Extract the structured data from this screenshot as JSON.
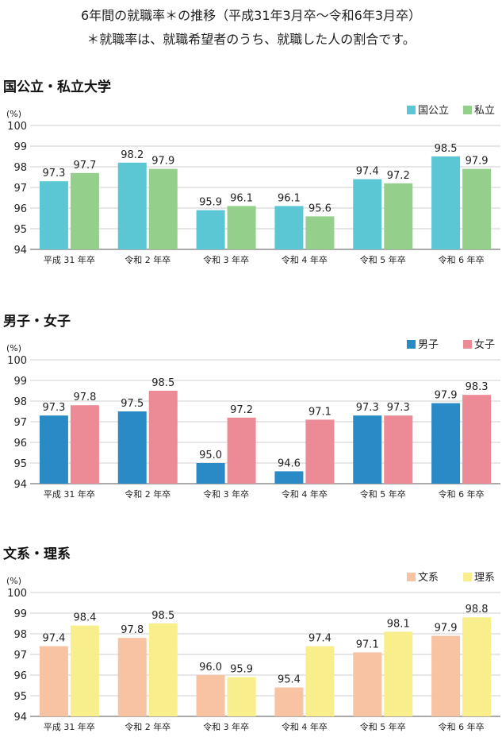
{
  "header": {
    "line1": "6年間の就職率＊の推移（平成31年3月卒～令和6年3月卒）",
    "line2": "＊就職率は、就職希望者のうち、就職した人の割合です。"
  },
  "chart_data": [
    {
      "type": "bar",
      "title": "国公立・私立大学",
      "ylabel": "(%)",
      "ylim": [
        94,
        100
      ],
      "yticks": [
        94,
        95,
        96,
        97,
        98,
        99,
        100
      ],
      "categories": [
        "平成 31 年卒",
        "令和 2 年卒",
        "令和 3 年卒",
        "令和 4 年卒",
        "令和 5 年卒",
        "令和 6 年卒"
      ],
      "legend_position": "top-right",
      "series": [
        {
          "name": "国公立",
          "color": "#5bc7d4",
          "values": [
            97.3,
            98.2,
            95.9,
            96.1,
            97.4,
            98.5
          ]
        },
        {
          "name": "私立",
          "color": "#94cf8b",
          "values": [
            97.7,
            97.9,
            96.1,
            95.6,
            97.2,
            97.9
          ]
        }
      ]
    },
    {
      "type": "bar",
      "title": "男子・女子",
      "ylabel": "(%)",
      "ylim": [
        94,
        100
      ],
      "yticks": [
        94,
        95,
        96,
        97,
        98,
        99,
        100
      ],
      "categories": [
        "平成 31 年卒",
        "令和 2 年卒",
        "令和 3 年卒",
        "令和 4 年卒",
        "令和 5 年卒",
        "令和 6 年卒"
      ],
      "legend_position": "top-right",
      "series": [
        {
          "name": "男子",
          "color": "#2a8ac6",
          "values": [
            97.3,
            97.5,
            95.0,
            94.6,
            97.3,
            97.9
          ]
        },
        {
          "name": "女子",
          "color": "#ec8a95",
          "values": [
            97.8,
            98.5,
            97.2,
            97.1,
            97.3,
            98.3
          ]
        }
      ]
    },
    {
      "type": "bar",
      "title": "文系・理系",
      "ylabel": "(%)",
      "ylim": [
        94,
        100
      ],
      "yticks": [
        94,
        95,
        96,
        97,
        98,
        99,
        100
      ],
      "categories": [
        "平成 31 年卒",
        "令和 2 年卒",
        "令和 3 年卒",
        "令和 4 年卒",
        "令和 5 年卒",
        "令和 6 年卒"
      ],
      "legend_position": "top-right",
      "series": [
        {
          "name": "文系",
          "color": "#f8c3a2",
          "values": [
            97.4,
            97.8,
            96.0,
            95.4,
            97.1,
            97.9
          ]
        },
        {
          "name": "理系",
          "color": "#f8ee8c",
          "values": [
            98.4,
            98.5,
            95.9,
            97.4,
            98.1,
            98.8
          ]
        }
      ]
    }
  ]
}
